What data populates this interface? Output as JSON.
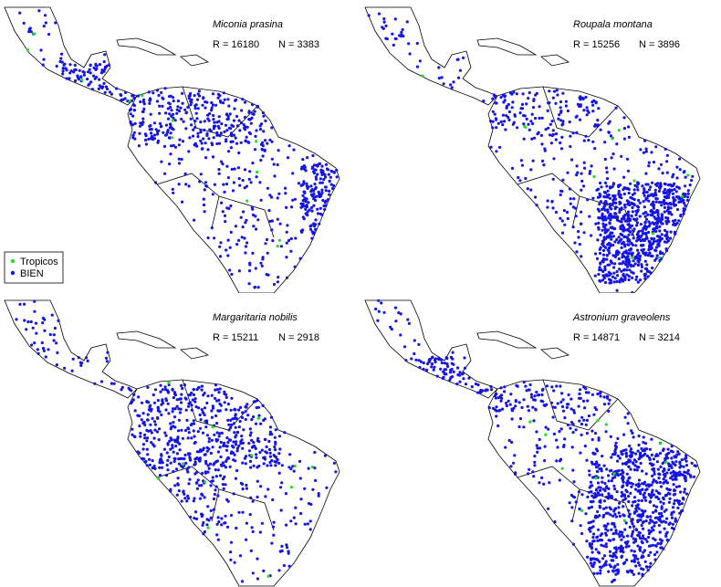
{
  "panels": [
    {
      "species": "Miconia prasina",
      "stats": [
        "R = 16180",
        "N = 3383"
      ]
    },
    {
      "species": "Roupala montana",
      "stats": [
        "R = 15256",
        "N = 3896"
      ]
    },
    {
      "species": "Margaritaria nobilis",
      "stats": [
        "R = 15211",
        "N = 2918"
      ]
    },
    {
      "species": "Astronium graveolens",
      "stats": [
        "R = 14871",
        "N = 3214"
      ]
    }
  ],
  "legend": [
    "Tropicos",
    "BIEN"
  ]
}
